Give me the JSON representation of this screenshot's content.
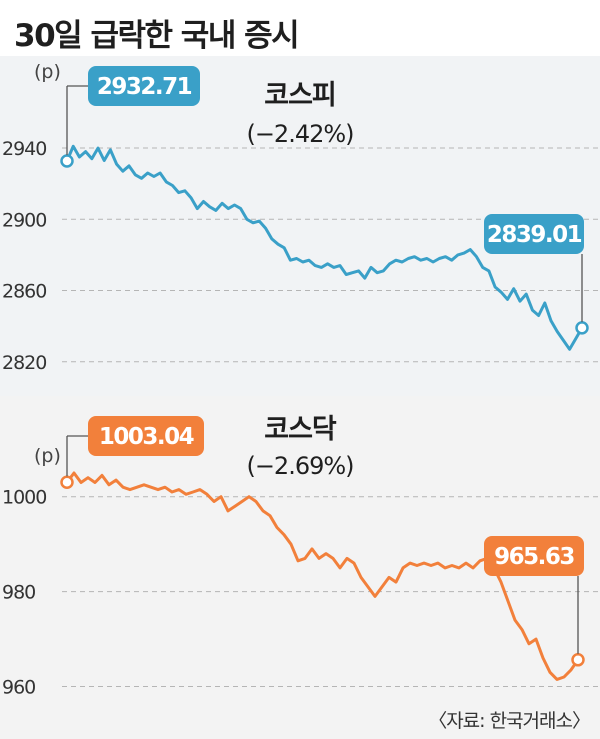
{
  "title": "30일 급락한 국내 증시",
  "source": "〈자료: 한국거래소〉",
  "chart_data": [
    {
      "type": "line",
      "name": "코스피",
      "change": "(−2.42%)",
      "unit": "(p)",
      "color": "#3aa0c8",
      "yticks": [
        "2940",
        "2900",
        "2860",
        "2820"
      ],
      "ylim": [
        2812,
        2958
      ],
      "start": {
        "label": "2932.71",
        "value": 2932.71
      },
      "end": {
        "label": "2839.01",
        "value": 2839.01
      },
      "values": [
        2932.71,
        2941,
        2935,
        2938,
        2934,
        2940,
        2933,
        2939,
        2931,
        2927,
        2930,
        2925,
        2923,
        2926,
        2924,
        2926,
        2921,
        2919,
        2915,
        2916,
        2912,
        2906,
        2910,
        2907,
        2905,
        2909,
        2906,
        2908,
        2906,
        2900,
        2898,
        2899,
        2895,
        2889,
        2886,
        2884,
        2877,
        2878,
        2876,
        2877,
        2874,
        2873,
        2875,
        2873,
        2874,
        2869,
        2870,
        2871,
        2867,
        2873,
        2870,
        2871,
        2875,
        2877,
        2876,
        2878,
        2879,
        2877,
        2878,
        2876,
        2878,
        2879,
        2877,
        2880,
        2881,
        2883,
        2879,
        2873,
        2871,
        2862,
        2859,
        2855,
        2861,
        2854,
        2858,
        2849,
        2846,
        2853,
        2843,
        2837,
        2832,
        2827,
        2833,
        2839.01
      ]
    },
    {
      "type": "line",
      "name": "코스닥",
      "change": "(−2.69%)",
      "unit": "(p)",
      "color": "#f2803b",
      "yticks": [
        "1000",
        "980",
        "960"
      ],
      "ylim": [
        958,
        1009
      ],
      "start": {
        "label": "1003.04",
        "value": 1003.04
      },
      "end": {
        "label": "965.63",
        "value": 965.63
      },
      "values": [
        1003.04,
        1005,
        1003,
        1004,
        1003,
        1004.5,
        1002.5,
        1003.5,
        1002,
        1001.5,
        1002,
        1002.5,
        1002,
        1001.5,
        1002,
        1001,
        1001.5,
        1000.5,
        1001,
        1001.5,
        1000.5,
        999,
        1000,
        997,
        998,
        999,
        1000,
        999,
        997,
        996,
        993.5,
        992,
        990,
        986.5,
        987,
        989,
        987,
        988,
        987,
        985,
        987,
        986,
        983,
        981,
        979,
        981,
        983,
        982,
        985,
        986,
        985.5,
        986,
        985.5,
        986,
        985,
        985.5,
        985,
        986,
        985,
        986.5,
        987,
        985,
        982,
        978,
        974,
        972,
        969,
        970,
        966,
        963,
        961.5,
        962,
        963.5,
        965.63
      ]
    }
  ]
}
